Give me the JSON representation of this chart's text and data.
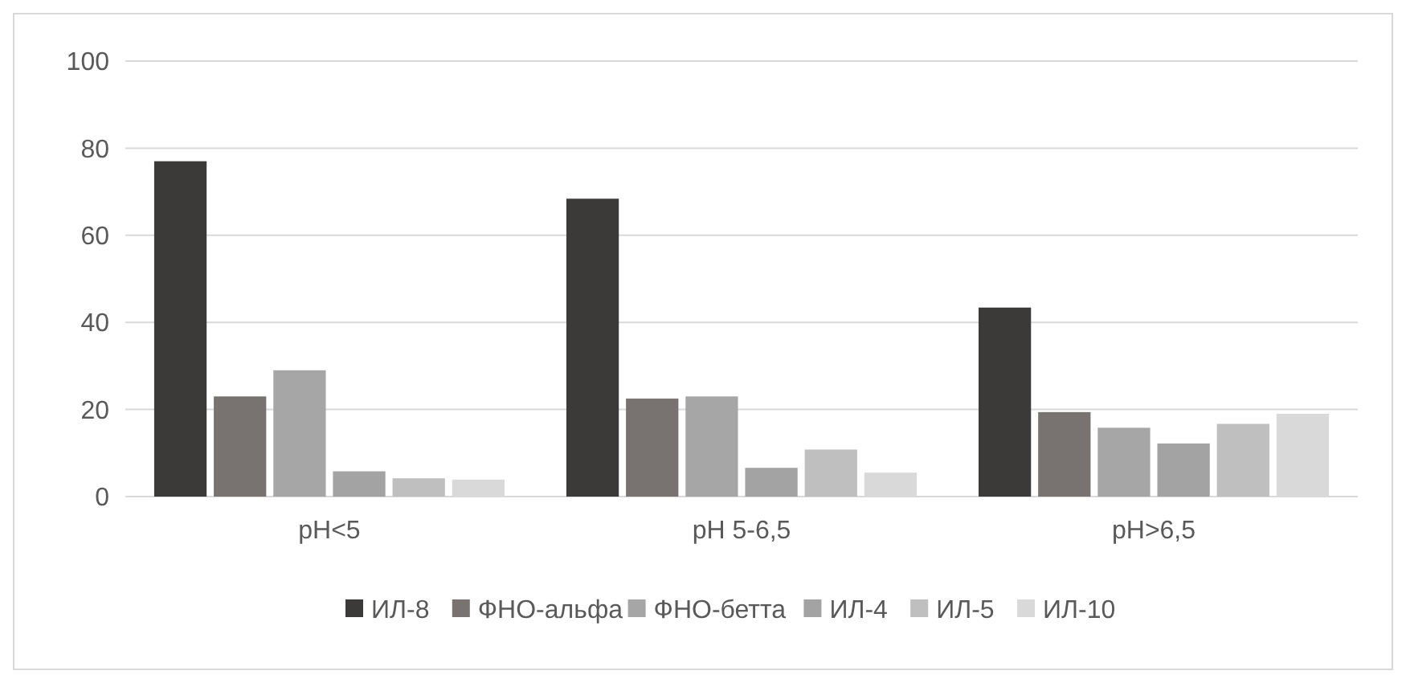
{
  "chart_data": {
    "type": "bar",
    "categories": [
      "pH<5",
      "pH 5-6,5",
      "pH>6,5"
    ],
    "series": [
      {
        "name": "ИЛ-8",
        "color": "#3c3a38",
        "values": [
          77,
          68.4,
          43.4
        ]
      },
      {
        "name": "ФНО-альфа",
        "color": "#787371",
        "values": [
          23,
          22.5,
          19.4
        ]
      },
      {
        "name": "ФНО-бетта",
        "color": "#a6a6a6",
        "values": [
          29,
          23,
          15.8
        ]
      },
      {
        "name": "ИЛ-4",
        "color": "#a3a3a3",
        "values": [
          5.8,
          6.6,
          12.2
        ]
      },
      {
        "name": "ИЛ-5",
        "color": "#bfbfbf",
        "values": [
          4.2,
          10.8,
          16.7
        ]
      },
      {
        "name": "ИЛ-10",
        "color": "#d9d9d9",
        "values": [
          3.9,
          5.5,
          19
        ]
      }
    ],
    "ylim": [
      0,
      100
    ],
    "yticks": [
      0,
      20,
      40,
      60,
      80,
      100
    ],
    "grid": "y",
    "legend": "bottom"
  }
}
